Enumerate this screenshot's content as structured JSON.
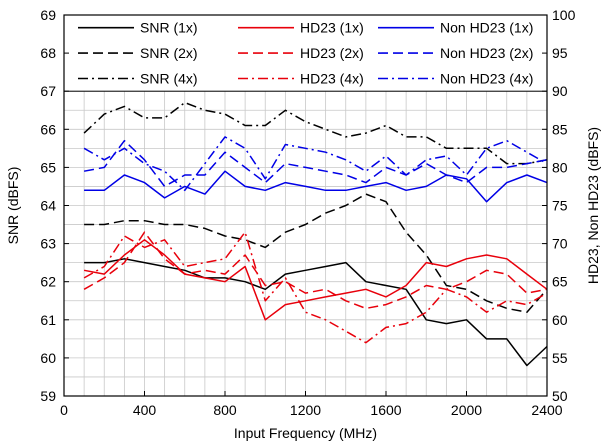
{
  "chart_data": {
    "type": "line",
    "xlabel": "Input Frequency (MHz)",
    "ylabel_left": "SNR (dBFS)",
    "ylabel_right": "HD23, Non HD23 (dBFS)",
    "xlim": [
      0,
      2400
    ],
    "ylim_left": [
      59,
      69
    ],
    "ylim_right": [
      50,
      100
    ],
    "x_ticks": [
      0,
      400,
      800,
      1200,
      1600,
      2000,
      2400
    ],
    "y_ticks_left": [
      59,
      60,
      61,
      62,
      63,
      64,
      65,
      66,
      67,
      68,
      69
    ],
    "y_ticks_right": [
      50,
      55,
      60,
      65,
      70,
      75,
      80,
      85,
      90,
      95,
      100
    ],
    "grid": true,
    "legend_position": "top",
    "series": [
      {
        "name": "SNR (1x)",
        "axis": "left",
        "color": "#000000",
        "style": "solid",
        "x": [
          100,
          200,
          300,
          400,
          500,
          600,
          700,
          800,
          900,
          1000,
          1100,
          1200,
          1300,
          1400,
          1500,
          1600,
          1700,
          1800,
          1900,
          2000,
          2100,
          2200,
          2300,
          2400
        ],
        "y": [
          62.5,
          62.5,
          62.6,
          62.5,
          62.4,
          62.3,
          62.1,
          62.1,
          62.0,
          61.8,
          62.2,
          62.3,
          62.4,
          62.5,
          62.0,
          61.9,
          61.8,
          61.0,
          60.9,
          61.0,
          60.5,
          60.5,
          59.8,
          60.3
        ]
      },
      {
        "name": "SNR (2x)",
        "axis": "left",
        "color": "#000000",
        "style": "dash",
        "x": [
          100,
          200,
          300,
          400,
          500,
          600,
          700,
          800,
          900,
          1000,
          1100,
          1200,
          1300,
          1400,
          1500,
          1600,
          1700,
          1800,
          1900,
          2000,
          2100,
          2200,
          2300,
          2400
        ],
        "y": [
          63.5,
          63.5,
          63.6,
          63.6,
          63.5,
          63.5,
          63.4,
          63.2,
          63.1,
          62.9,
          63.3,
          63.5,
          63.8,
          64.0,
          64.3,
          64.1,
          63.3,
          62.7,
          61.9,
          61.8,
          61.5,
          61.3,
          61.2,
          61.8
        ]
      },
      {
        "name": "SNR (4x)",
        "axis": "left",
        "color": "#000000",
        "style": "dashdot",
        "x": [
          100,
          200,
          300,
          400,
          500,
          600,
          700,
          800,
          900,
          1000,
          1100,
          1200,
          1300,
          1400,
          1500,
          1600,
          1700,
          1800,
          1900,
          2000,
          2100,
          2200,
          2300,
          2400
        ],
        "y": [
          65.9,
          66.4,
          66.6,
          66.3,
          66.3,
          66.7,
          66.5,
          66.4,
          66.1,
          66.1,
          66.5,
          66.2,
          66.0,
          65.8,
          65.9,
          66.1,
          65.8,
          65.8,
          65.5,
          65.5,
          65.5,
          65.1,
          65.1,
          65.2
        ]
      },
      {
        "name": "HD23 (1x)",
        "axis": "right",
        "color": "#e8000b",
        "style": "solid",
        "x": [
          100,
          200,
          300,
          400,
          500,
          600,
          700,
          800,
          900,
          1000,
          1100,
          1200,
          1300,
          1400,
          1500,
          1600,
          1700,
          1800,
          1900,
          2000,
          2100,
          2200,
          2300,
          2400
        ],
        "y": [
          66.5,
          66.0,
          68.5,
          70.5,
          68.5,
          66.0,
          65.5,
          65.0,
          67.0,
          60.0,
          62.0,
          62.5,
          63.0,
          63.5,
          64.0,
          63.0,
          64.5,
          67.5,
          67.0,
          68.0,
          68.5,
          68.0,
          66.0,
          64.0
        ]
      },
      {
        "name": "HD23 (2x)",
        "axis": "right",
        "color": "#e8000b",
        "style": "dash",
        "x": [
          100,
          200,
          300,
          400,
          500,
          600,
          700,
          800,
          900,
          1000,
          1100,
          1200,
          1300,
          1400,
          1500,
          1600,
          1700,
          1800,
          1900,
          2000,
          2100,
          2200,
          2300,
          2400
        ],
        "y": [
          64.0,
          65.5,
          67.5,
          71.5,
          68.0,
          66.0,
          66.5,
          66.0,
          68.5,
          64.5,
          65.0,
          63.5,
          64.0,
          62.5,
          61.5,
          62.0,
          63.0,
          64.5,
          64.0,
          65.0,
          66.5,
          66.0,
          63.5,
          64.0
        ]
      },
      {
        "name": "HD23 (4x)",
        "axis": "right",
        "color": "#e8000b",
        "style": "dashdot",
        "x": [
          100,
          200,
          300,
          400,
          500,
          600,
          700,
          800,
          900,
          1000,
          1100,
          1200,
          1300,
          1400,
          1500,
          1600,
          1700,
          1800,
          1900,
          2000,
          2100,
          2200,
          2300,
          2400
        ],
        "y": [
          65.5,
          67.0,
          71.0,
          69.5,
          70.5,
          67.0,
          67.5,
          68.0,
          71.5,
          62.5,
          65.5,
          61.0,
          60.0,
          58.5,
          57.0,
          59.0,
          59.5,
          61.0,
          64.0,
          63.0,
          61.0,
          62.5,
          62.0,
          63.5
        ]
      },
      {
        "name": "Non HD23 (1x)",
        "axis": "right",
        "color": "#0000e6",
        "style": "solid",
        "x": [
          100,
          200,
          300,
          400,
          500,
          600,
          700,
          800,
          900,
          1000,
          1100,
          1200,
          1300,
          1400,
          1500,
          1600,
          1700,
          1800,
          1900,
          2000,
          2100,
          2200,
          2300,
          2400
        ],
        "y": [
          77.0,
          77.0,
          79.0,
          78.0,
          76.0,
          77.5,
          76.5,
          79.5,
          77.5,
          77.0,
          78.0,
          77.5,
          77.0,
          77.0,
          77.5,
          78.0,
          77.0,
          77.5,
          79.0,
          78.5,
          75.5,
          78.0,
          79.0,
          78.0
        ]
      },
      {
        "name": "Non HD23 (2x)",
        "axis": "right",
        "color": "#0000e6",
        "style": "dash",
        "x": [
          100,
          200,
          300,
          400,
          500,
          600,
          700,
          800,
          900,
          1000,
          1100,
          1200,
          1300,
          1400,
          1500,
          1600,
          1700,
          1800,
          1900,
          2000,
          2100,
          2200,
          2300,
          2400
        ],
        "y": [
          79.5,
          80.0,
          83.5,
          81.0,
          77.5,
          79.0,
          79.0,
          82.0,
          80.0,
          78.0,
          80.5,
          80.0,
          79.5,
          79.0,
          78.0,
          80.0,
          79.0,
          80.5,
          79.0,
          78.0,
          80.0,
          80.0,
          80.5,
          81.0
        ]
      },
      {
        "name": "Non HD23 (4x)",
        "axis": "right",
        "color": "#0000e6",
        "style": "dashdot",
        "x": [
          100,
          200,
          300,
          400,
          500,
          600,
          700,
          800,
          900,
          1000,
          1100,
          1200,
          1300,
          1400,
          1500,
          1600,
          1700,
          1800,
          1900,
          2000,
          2100,
          2200,
          2300,
          2400
        ],
        "y": [
          82.5,
          81.0,
          82.5,
          80.5,
          79.5,
          77.0,
          80.5,
          84.0,
          82.5,
          78.5,
          83.0,
          82.5,
          82.0,
          81.0,
          79.5,
          81.5,
          79.0,
          81.0,
          81.5,
          79.0,
          82.5,
          83.5,
          82.0,
          80.5
        ]
      }
    ]
  }
}
